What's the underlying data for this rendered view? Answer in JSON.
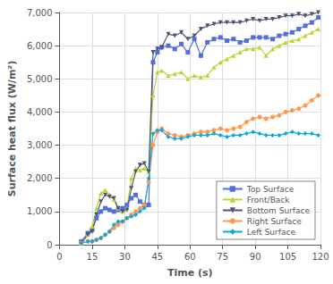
{
  "chart_data": {
    "type": "line",
    "xlabel": "Time (s)",
    "ylabel": "Surface heat flux (W/m²)",
    "xlim": [
      0,
      120
    ],
    "ylim": [
      0,
      7000
    ],
    "xticks": [
      0,
      15,
      30,
      45,
      60,
      75,
      90,
      105,
      120
    ],
    "yticks": [
      0,
      1000,
      2000,
      3000,
      4000,
      5000,
      6000,
      7000
    ],
    "grid": true,
    "legend": "lower right",
    "x": [
      10,
      13,
      15,
      17,
      19,
      21,
      23,
      25,
      27,
      29,
      31,
      33,
      35,
      37,
      39,
      41,
      43,
      45,
      47,
      50,
      53,
      56,
      59,
      62,
      65,
      68,
      71,
      74,
      77,
      80,
      83,
      86,
      89,
      92,
      95,
      98,
      101,
      104,
      107,
      110,
      113,
      116,
      119
    ],
    "series": [
      {
        "name": "Top Surface",
        "marker": "square",
        "values": [
          100,
          350,
          450,
          800,
          1000,
          1100,
          1050,
          1000,
          1050,
          1100,
          1200,
          1400,
          1500,
          1300,
          1200,
          1200,
          5500,
          5800,
          5950,
          6000,
          5900,
          6050,
          5800,
          6200,
          5700,
          6100,
          6200,
          6250,
          6150,
          6200,
          6100,
          6150,
          6250,
          6250,
          6250,
          6200,
          6300,
          6350,
          6400,
          6500,
          6600,
          6700,
          6850
        ]
      },
      {
        "name": "Front/Back",
        "marker": "triangle-up",
        "values": [
          50,
          300,
          550,
          1100,
          1550,
          1650,
          1500,
          1350,
          1100,
          1000,
          1100,
          2000,
          2300,
          2250,
          2300,
          2200,
          4500,
          5200,
          5250,
          5100,
          5150,
          5200,
          5000,
          5100,
          5050,
          5100,
          5350,
          5500,
          5600,
          5700,
          5800,
          5900,
          5900,
          5950,
          5700,
          5900,
          6000,
          6100,
          6150,
          6200,
          6300,
          6400,
          6500
        ]
      },
      {
        "name": "Bottom Surface",
        "marker": "triangle-down",
        "values": [
          50,
          300,
          400,
          900,
          1300,
          1500,
          1450,
          1400,
          1100,
          1000,
          1050,
          1700,
          2200,
          2400,
          2450,
          2200,
          5800,
          5900,
          5950,
          6350,
          6300,
          6400,
          6200,
          6300,
          6500,
          6600,
          6650,
          6700,
          6700,
          6700,
          6700,
          6750,
          6800,
          6750,
          6800,
          6800,
          6850,
          6900,
          6900,
          6950,
          6900,
          6950,
          7000
        ]
      },
      {
        "name": "Right Surface",
        "marker": "circle",
        "values": [
          50,
          100,
          100,
          150,
          200,
          300,
          400,
          500,
          600,
          700,
          800,
          900,
          1000,
          1100,
          1200,
          1900,
          3000,
          3400,
          3500,
          3350,
          3300,
          3250,
          3300,
          3350,
          3400,
          3400,
          3450,
          3500,
          3450,
          3500,
          3550,
          3700,
          3800,
          3850,
          3800,
          3850,
          3900,
          4000,
          4050,
          4100,
          4200,
          4350,
          4500
        ]
      },
      {
        "name": "Left Surface",
        "marker": "diamond",
        "values": [
          50,
          100,
          100,
          150,
          200,
          300,
          400,
          600,
          700,
          700,
          800,
          850,
          900,
          1000,
          1100,
          2000,
          3350,
          3450,
          3450,
          3250,
          3200,
          3200,
          3250,
          3300,
          3300,
          3300,
          3350,
          3300,
          3250,
          3300,
          3300,
          3350,
          3400,
          3350,
          3300,
          3300,
          3300,
          3350,
          3400,
          3350,
          3350,
          3350,
          3300
        ]
      }
    ]
  }
}
